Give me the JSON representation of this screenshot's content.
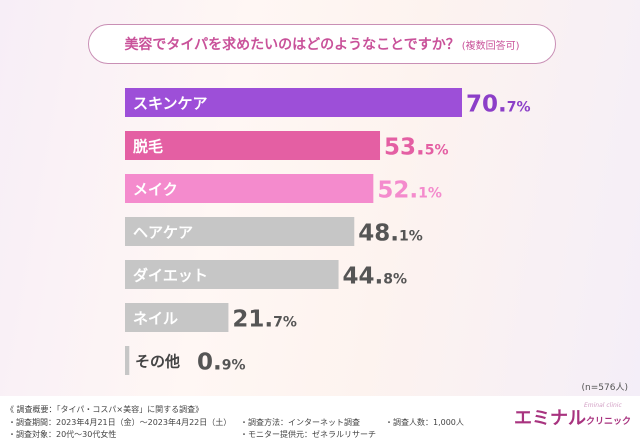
{
  "chart_data": {
    "type": "bar",
    "orientation": "horizontal",
    "title": "美容でタイパを求めたいのはどのようなことですか？",
    "subtitle": "(複数回答可)",
    "categories": [
      "スキンケア",
      "脱毛",
      "メイク",
      "ヘアケア",
      "ダイエット",
      "ネイル",
      "その他"
    ],
    "values": [
      70.7,
      53.5,
      52.1,
      48.1,
      44.8,
      21.7,
      0.9
    ],
    "unit": "%",
    "colors": [
      "#9d4fd8",
      "#e45fa3",
      "#f48bcd",
      "#c6c6c6",
      "#c6c6c6",
      "#c6c6c6",
      "#c6c6c6"
    ],
    "xlim": [
      0,
      70.7
    ],
    "grid": false,
    "note": "(n=576人)"
  },
  "footer": {
    "summary": "《 調査概要：「タイパ・コスパ×美容」に関する調査》",
    "period": "・調査期間：2023年4月21日（金）〜2023年4月22日（土）",
    "target": "・調査対象：20代〜30代女性",
    "method": "・調査方法：インターネット調査",
    "provider": "・モニター提供元：ゼネラルリサーチ",
    "count": "・調査人数：1,000人"
  },
  "logo": {
    "main": "エミナル",
    "sub": "クリニック",
    "en": "Eminal clinic"
  }
}
